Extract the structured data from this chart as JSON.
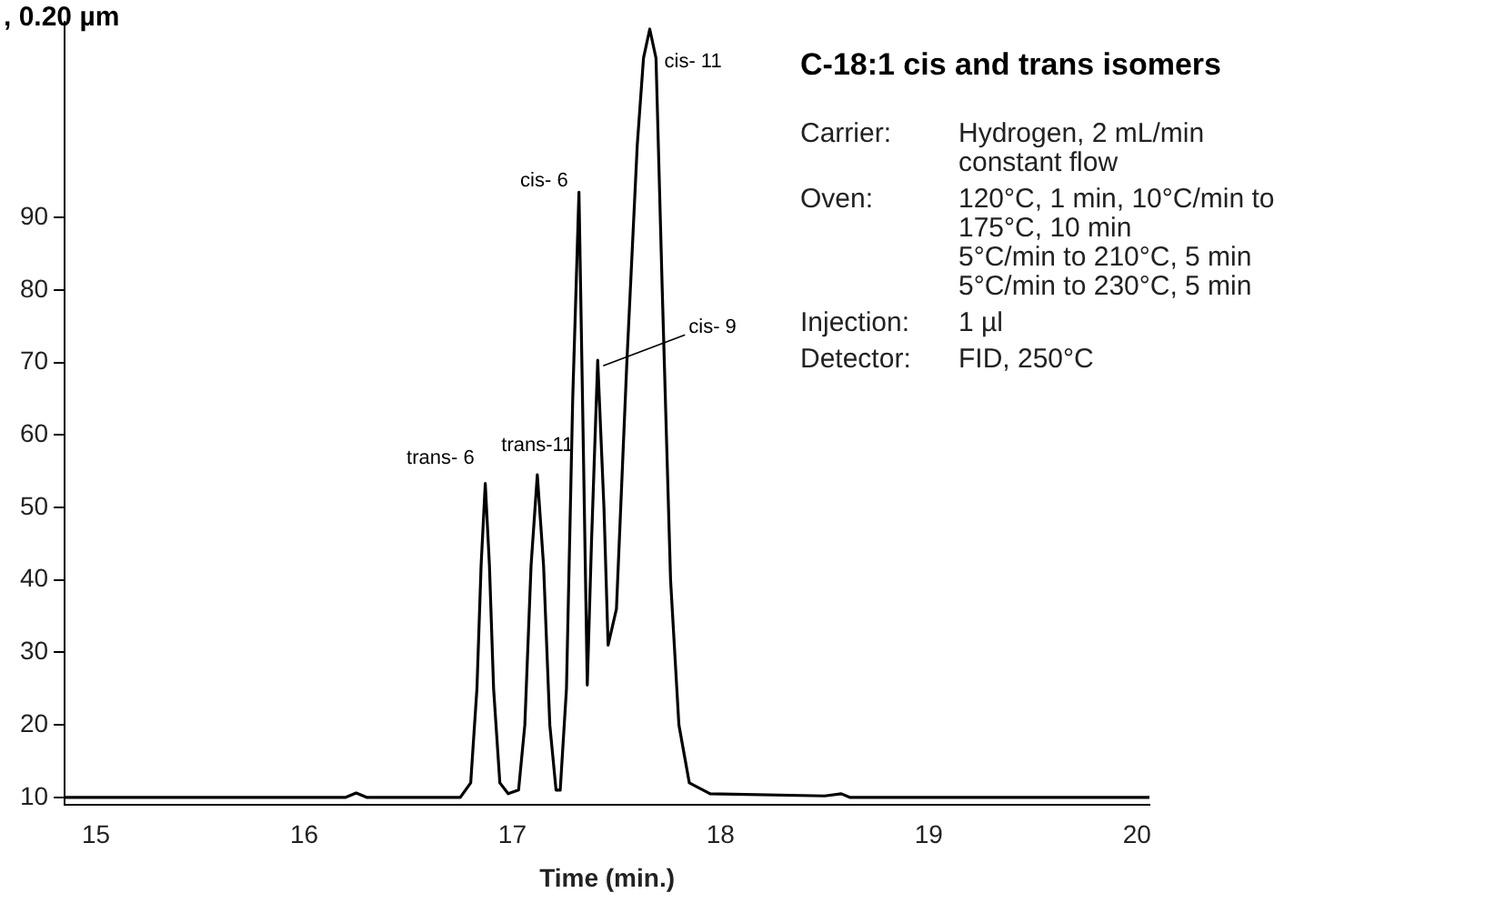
{
  "chart_data": {
    "type": "line",
    "title": "C-18:1 cis and trans isomers",
    "xlabel": "Time (min.)",
    "x": [
      14.85,
      16.2,
      16.25,
      16.3,
      16.75,
      16.8,
      16.83,
      16.85,
      16.87,
      16.89,
      16.91,
      16.94,
      16.98,
      17.03,
      17.06,
      17.09,
      17.12,
      17.15,
      17.18,
      17.21,
      17.23,
      17.26,
      17.29,
      17.32,
      17.34,
      17.36,
      17.38,
      17.41,
      17.44,
      17.46,
      17.5,
      17.55,
      17.6,
      17.63,
      17.66,
      17.69,
      17.72,
      17.76,
      17.8,
      17.85,
      17.95,
      18.5,
      18.58,
      18.62,
      20.06
    ],
    "series": [
      {
        "color": "#000000",
        "values": [
          10,
          10,
          10.6,
          10,
          10,
          12,
          25,
          42,
          53.3,
          42,
          25,
          12,
          10.5,
          11,
          20,
          42,
          54.5,
          42,
          20,
          11,
          11,
          25,
          65,
          93.5,
          60,
          25.5,
          45,
          70.3,
          50,
          31,
          36,
          70,
          100,
          112,
          116,
          112,
          80,
          40,
          20,
          12,
          10.5,
          10.2,
          10.5,
          10,
          10
        ]
      }
    ],
    "xlim": [
      14.85,
      20.06
    ],
    "xticks": [
      15,
      16,
      17,
      18,
      19,
      20
    ],
    "ylim": [
      9,
      117
    ],
    "yticks": [
      10,
      20,
      30,
      40,
      50,
      60,
      70,
      80,
      90
    ],
    "grid": false,
    "legend": false,
    "marker": "none",
    "line_style": "solid",
    "annotations": [
      ", 0.20 µm",
      {
        "text": "trans- 6",
        "x": 16.87,
        "y": 53.3
      },
      {
        "text": "trans-11",
        "x": 17.12,
        "y": 54.5
      },
      {
        "text": "cis- 6",
        "x": 17.32,
        "y": 93.5
      },
      {
        "text": "cis- 9",
        "x": 17.41,
        "y": 70.3
      },
      {
        "text": "cis- 11",
        "x": 17.66,
        "y": 116
      },
      "Carrier:",
      "Hydrogen, 2 mL/min\nconstant flow",
      "Oven:",
      "120°C, 1 min, 10°C/min to\n175°C, 10 min\n5°C/min to 210°C, 5 min\n5°C/min to 230°C, 5 min",
      "Injection:",
      "1 µl",
      "Detector:",
      "FID, 250°C"
    ]
  }
}
